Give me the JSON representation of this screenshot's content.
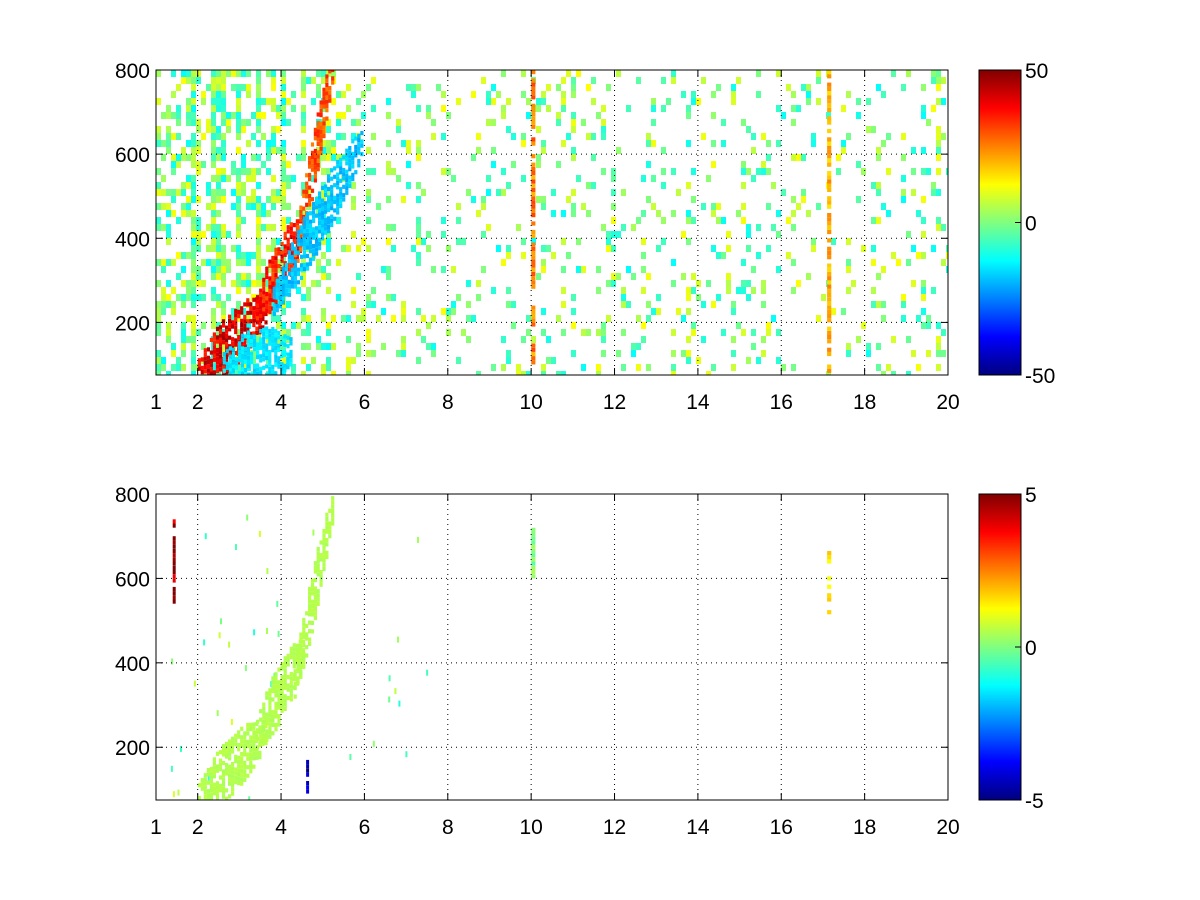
{
  "chart_data": [
    {
      "type": "heatmap",
      "title": "",
      "xlabel": "",
      "ylabel": "",
      "xlim": [
        1,
        20
      ],
      "ylim": [
        75,
        800
      ],
      "x_ticks": [
        1,
        2,
        4,
        6,
        8,
        10,
        12,
        14,
        16,
        18,
        20
      ],
      "x_tick_labels": [
        "1",
        "2",
        "4",
        "6",
        "8",
        "10",
        "12",
        "14",
        "16",
        "18",
        "20"
      ],
      "y_ticks": [
        200,
        400,
        600,
        800
      ],
      "y_tick_labels": [
        "200",
        "400",
        "600",
        "800"
      ],
      "grid": true,
      "colormap": "jet",
      "colorbar": {
        "range": [
          -50,
          50
        ],
        "ticks": [
          50,
          0,
          -50
        ],
        "tick_labels": [
          "50",
          "0",
          "-50"
        ]
      },
      "features": [
        {
          "x": [
            2.0,
            3.6
          ],
          "y_center": [
            80,
            230
          ],
          "value": 40
        },
        {
          "x": [
            3.4,
            4.5
          ],
          "y_center": [
            230,
            420
          ],
          "value": 35
        },
        {
          "x": [
            4.3,
            5.2
          ],
          "y_center": [
            350,
            800
          ],
          "value": 30
        },
        {
          "x": [
            3.8,
            5.9
          ],
          "y_center": [
            250,
            620
          ],
          "value": -18
        },
        {
          "x": [
            2.6,
            4.2
          ],
          "y_center": [
            95,
            130
          ],
          "value": -15
        },
        {
          "x": [
            10.0,
            10.1
          ],
          "y_range": [
            100,
            800
          ],
          "value": 25
        },
        {
          "x": [
            17.1,
            17.2
          ],
          "y_range": [
            80,
            800
          ],
          "value": 20
        }
      ]
    },
    {
      "type": "heatmap",
      "title": "",
      "xlabel": "",
      "ylabel": "",
      "xlim": [
        1,
        20
      ],
      "ylim": [
        75,
        800
      ],
      "x_ticks": [
        1,
        2,
        4,
        6,
        8,
        10,
        12,
        14,
        16,
        18,
        20
      ],
      "x_tick_labels": [
        "1",
        "2",
        "4",
        "6",
        "8",
        "10",
        "12",
        "14",
        "16",
        "18",
        "20"
      ],
      "y_ticks": [
        200,
        400,
        600,
        800
      ],
      "y_tick_labels": [
        "200",
        "400",
        "600",
        "800"
      ],
      "grid": true,
      "colormap": "jet",
      "colorbar": {
        "range": [
          -5,
          5
        ],
        "ticks": [
          5,
          0,
          -5
        ],
        "tick_labels": [
          "5",
          "0",
          "-5"
        ]
      },
      "features": [
        {
          "x": [
            2.0,
            3.6
          ],
          "y_center": [
            80,
            230
          ],
          "value": 0.5
        },
        {
          "x": [
            3.4,
            4.5
          ],
          "y_center": [
            230,
            420
          ],
          "value": 0.5
        },
        {
          "x": [
            4.3,
            5.2
          ],
          "y_center": [
            350,
            760
          ],
          "value": 0.5
        },
        {
          "x": [
            10.0,
            10.1
          ],
          "y_range": [
            600,
            720
          ],
          "value": 0
        },
        {
          "x": [
            17.1,
            17.2
          ],
          "y_range": [
            515,
            660
          ],
          "value": 1.5
        },
        {
          "x": [
            1.4,
            1.45
          ],
          "y_range": [
            540,
            740
          ],
          "value": 5
        },
        {
          "x": [
            4.6,
            4.65
          ],
          "y_range": [
            90,
            180
          ],
          "value": -4
        }
      ]
    }
  ]
}
